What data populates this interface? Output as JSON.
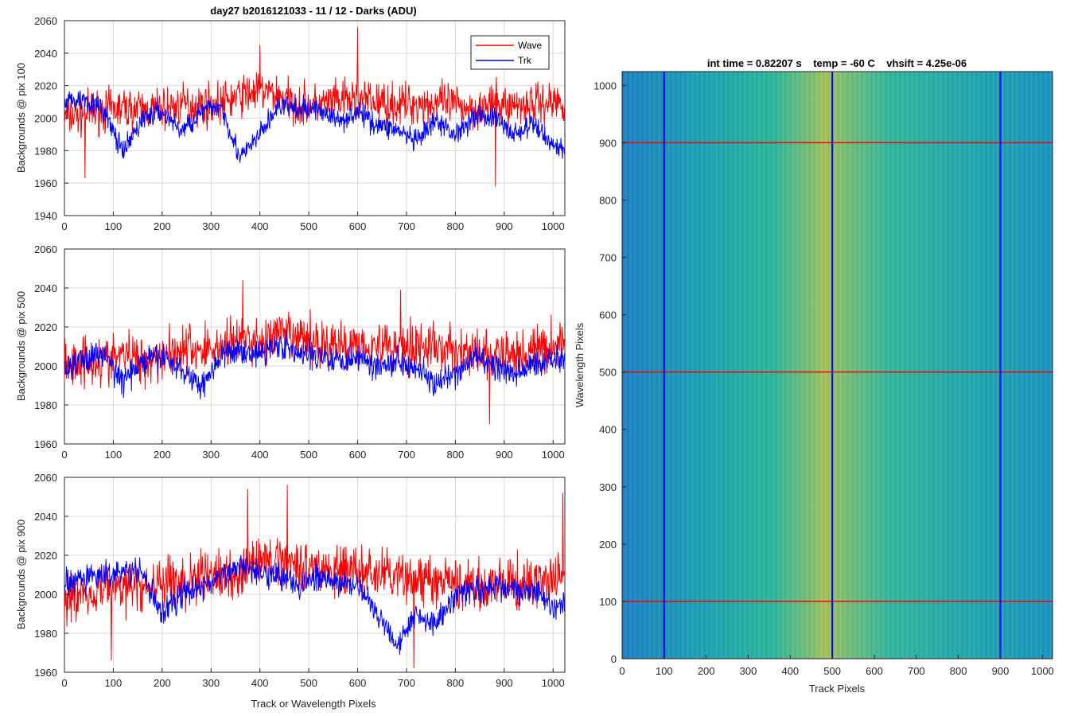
{
  "chart_data": [
    {
      "type": "line",
      "title": "day27 b2016121033 - 11 / 12 - Darks (ADU)",
      "ylabel": "Backgrounds @ pix 100",
      "xlabel": "",
      "xlim": [
        0,
        1024
      ],
      "ylim": [
        1940,
        2060
      ],
      "xticks": [
        0,
        100,
        200,
        300,
        400,
        500,
        600,
        700,
        800,
        900,
        1000
      ],
      "yticks": [
        1940,
        1960,
        1980,
        2000,
        2020,
        2040,
        2060
      ],
      "grid": true,
      "legend": {
        "position": "top-right",
        "entries": [
          "Wave",
          "Trk"
        ]
      },
      "series": [
        {
          "name": "Wave",
          "color": "#ff0000",
          "x": [
            0,
            40,
            80,
            120,
            160,
            200,
            240,
            280,
            320,
            360,
            400,
            440,
            480,
            520,
            560,
            600,
            640,
            680,
            720,
            760,
            800,
            840,
            880,
            920,
            960,
            1000,
            1024
          ],
          "values": [
            2000,
            2003,
            2005,
            2006,
            2005,
            2006,
            2008,
            2008,
            2009,
            2014,
            2017,
            2014,
            2008,
            2008,
            2010,
            2012,
            2010,
            2008,
            2009,
            2009,
            2008,
            2006,
            2008,
            2008,
            2009,
            2010,
            2010
          ],
          "spikes": [
            [
              42,
              1963
            ],
            [
              400,
              2045
            ],
            [
              600,
              2056
            ],
            [
              882,
              1958
            ]
          ]
        },
        {
          "name": "Trk",
          "color": "#0000ff",
          "x": [
            0,
            40,
            80,
            120,
            160,
            200,
            240,
            280,
            320,
            360,
            400,
            440,
            480,
            520,
            560,
            600,
            640,
            680,
            720,
            760,
            800,
            840,
            880,
            920,
            960,
            1000,
            1024
          ],
          "values": [
            2010,
            2012,
            2005,
            1978,
            2000,
            2004,
            1992,
            2004,
            2008,
            1975,
            1990,
            2008,
            2005,
            2006,
            1998,
            2004,
            1996,
            1993,
            1985,
            1998,
            1990,
            2002,
            2000,
            1990,
            1996,
            1984,
            1980
          ]
        }
      ]
    },
    {
      "type": "line",
      "title": "",
      "ylabel": "Backgrounds @ pix 500",
      "xlabel": "",
      "xlim": [
        0,
        1024
      ],
      "ylim": [
        1960,
        2060
      ],
      "xticks": [
        0,
        100,
        200,
        300,
        400,
        500,
        600,
        700,
        800,
        900,
        1000
      ],
      "yticks": [
        1960,
        1980,
        2000,
        2020,
        2040,
        2060
      ],
      "grid": true,
      "series": [
        {
          "name": "Wave",
          "color": "#ff0000",
          "x": [
            0,
            40,
            80,
            120,
            160,
            200,
            240,
            280,
            320,
            360,
            400,
            440,
            480,
            520,
            560,
            600,
            640,
            680,
            720,
            760,
            800,
            840,
            880,
            920,
            960,
            1000,
            1024
          ],
          "values": [
            2000,
            2004,
            2002,
            2006,
            2003,
            2006,
            2009,
            2008,
            2010,
            2014,
            2012,
            2016,
            2014,
            2012,
            2010,
            2012,
            2011,
            2010,
            2011,
            2009,
            2008,
            2006,
            2004,
            2006,
            2008,
            2010,
            2012
          ],
          "spikes": [
            [
              365,
              2044
            ],
            [
              688,
              2039
            ],
            [
              870,
              1970
            ]
          ]
        },
        {
          "name": "Trk",
          "color": "#0000ff",
          "x": [
            0,
            40,
            80,
            120,
            160,
            200,
            240,
            280,
            320,
            360,
            400,
            440,
            480,
            520,
            560,
            600,
            640,
            680,
            720,
            760,
            800,
            840,
            880,
            920,
            960,
            1000,
            1024
          ],
          "values": [
            1998,
            2004,
            2006,
            1992,
            2002,
            2005,
            1998,
            1990,
            2005,
            2008,
            2006,
            2012,
            2005,
            2006,
            2003,
            2005,
            2000,
            2003,
            2000,
            1990,
            1995,
            2005,
            2000,
            1995,
            2001,
            2004,
            2005
          ]
        }
      ]
    },
    {
      "type": "line",
      "title": "",
      "ylabel": "Backgrounds @ pix 900",
      "xlabel": "Track or Wavelength Pixels",
      "xlim": [
        0,
        1024
      ],
      "ylim": [
        1960,
        2060
      ],
      "xticks": [
        0,
        100,
        200,
        300,
        400,
        500,
        600,
        700,
        800,
        900,
        1000
      ],
      "yticks": [
        1960,
        1980,
        2000,
        2020,
        2040,
        2060
      ],
      "grid": true,
      "series": [
        {
          "name": "Wave",
          "color": "#ff0000",
          "x": [
            0,
            40,
            80,
            120,
            160,
            200,
            240,
            280,
            320,
            360,
            400,
            440,
            480,
            520,
            560,
            600,
            640,
            680,
            720,
            760,
            800,
            840,
            880,
            920,
            960,
            1000,
            1024
          ],
          "values": [
            1998,
            2000,
            2004,
            2004,
            2003,
            2006,
            2005,
            2010,
            2008,
            2012,
            2016,
            2018,
            2016,
            2013,
            2012,
            2012,
            2010,
            2009,
            2008,
            2006,
            2005,
            2005,
            2004,
            2005,
            2006,
            2008,
            2008
          ],
          "spikes": [
            [
              96,
              1966
            ],
            [
              375,
              2054
            ],
            [
              456,
              2056
            ],
            [
              715,
              1962
            ],
            [
              1020,
              2052
            ]
          ]
        },
        {
          "name": "Trk",
          "color": "#0000ff",
          "x": [
            0,
            40,
            80,
            120,
            160,
            200,
            240,
            280,
            320,
            360,
            400,
            440,
            480,
            520,
            560,
            600,
            640,
            680,
            720,
            760,
            800,
            840,
            880,
            920,
            960,
            1000,
            1024
          ],
          "values": [
            2005,
            2008,
            2010,
            2012,
            2010,
            1990,
            2000,
            2004,
            2008,
            2016,
            2012,
            2010,
            2005,
            2008,
            2006,
            2004,
            1990,
            1975,
            1990,
            1985,
            2000,
            2002,
            2004,
            2002,
            2003,
            1992,
            1995
          ]
        }
      ]
    },
    {
      "type": "heatmap",
      "title": "int time = 0.82207 s    temp = -60 C    vhsift = 4.25e-06",
      "xlabel": "Track Pixels",
      "ylabel": "Wavelength Pixels",
      "xlim": [
        0,
        1024
      ],
      "ylim": [
        0,
        1024
      ],
      "xticks": [
        0,
        100,
        200,
        300,
        400,
        500,
        600,
        700,
        800,
        900,
        1000
      ],
      "yticks": [
        0,
        100,
        200,
        300,
        400,
        500,
        600,
        700,
        800,
        900,
        1000
      ],
      "colormap": "parula",
      "bright_band_center_x": 480,
      "vertical_markers": {
        "color": "#0000ff",
        "x": [
          100,
          500,
          900
        ]
      },
      "horizontal_markers": {
        "color": "#ff0000",
        "y": [
          100,
          500,
          900
        ]
      }
    }
  ]
}
